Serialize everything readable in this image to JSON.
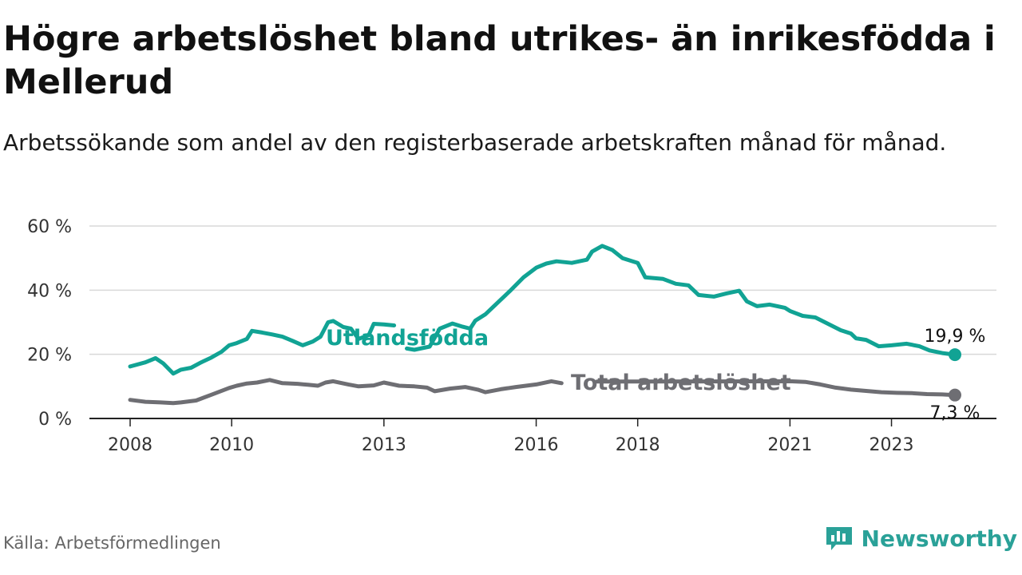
{
  "title": "Högre arbetslöshet bland utrikes- än inrikesfödda i Mellerud",
  "subtitle": "Arbetssökande som andel av den registerbaserade arbetskraften månad för månad.",
  "source": "Källa: Arbetsförmedlingen",
  "brand": "Newsworthy",
  "colors": {
    "foreign": "#11a394",
    "total": "#6e6e73",
    "grid": "#d9d9d9",
    "brand": "#2aa198"
  },
  "chart_data": {
    "type": "line",
    "title": "Högre arbetslöshet bland utrikes- än inrikesfödda i Mellerud",
    "ylim": [
      0,
      60
    ],
    "xlim": [
      2008.0,
      2024.3
    ],
    "y_ticks": [
      0,
      20,
      40,
      60
    ],
    "y_tick_labels": [
      "0 %",
      "20 %",
      "40 %",
      "60 %"
    ],
    "x_ticks": [
      2008,
      2010,
      2013,
      2016,
      2018,
      2021,
      2023
    ],
    "x_tick_labels": [
      "2008",
      "2010",
      "2013",
      "2016",
      "2018",
      "2021",
      "2023"
    ],
    "grid": true,
    "series": [
      {
        "name": "Utlandsfödda",
        "label": "Utlandsfödda",
        "end_label": "19,9 %",
        "points": [
          [
            2008.0,
            16.2
          ],
          [
            2008.3,
            17.5
          ],
          [
            2008.5,
            18.8
          ],
          [
            2008.65,
            17.2
          ],
          [
            2008.85,
            14.0
          ],
          [
            2009.0,
            15.2
          ],
          [
            2009.2,
            15.8
          ],
          [
            2009.4,
            17.5
          ],
          [
            2009.6,
            19.0
          ],
          [
            2009.8,
            20.8
          ],
          [
            2009.95,
            22.8
          ],
          [
            2010.1,
            23.5
          ],
          [
            2010.3,
            24.8
          ],
          [
            2010.4,
            27.3
          ],
          [
            2010.6,
            26.8
          ],
          [
            2010.8,
            26.2
          ],
          [
            2011.0,
            25.5
          ],
          [
            2011.2,
            24.2
          ],
          [
            2011.4,
            22.8
          ],
          [
            2011.6,
            24.0
          ],
          [
            2011.75,
            25.5
          ],
          [
            2011.9,
            30.0
          ],
          [
            2012.0,
            30.4
          ],
          [
            2012.2,
            28.5
          ],
          [
            2012.35,
            28.0
          ],
          [
            2012.5,
            24.8
          ],
          [
            2012.7,
            26.0
          ],
          [
            2012.8,
            29.5
          ],
          [
            2013.0,
            29.3
          ],
          [
            2013.2,
            29.0
          ]
        ],
        "points_b": [
          [
            2013.45,
            21.8
          ],
          [
            2013.6,
            21.4
          ],
          [
            2013.9,
            22.4
          ],
          [
            2014.1,
            28.0
          ],
          [
            2014.35,
            29.6
          ],
          [
            2014.55,
            28.6
          ],
          [
            2014.7,
            28.0
          ],
          [
            2014.8,
            30.5
          ],
          [
            2015.0,
            32.5
          ],
          [
            2015.2,
            35.5
          ],
          [
            2015.5,
            40.0
          ],
          [
            2015.75,
            44.0
          ],
          [
            2016.0,
            47.0
          ],
          [
            2016.2,
            48.3
          ],
          [
            2016.4,
            49.0
          ],
          [
            2016.7,
            48.5
          ],
          [
            2017.0,
            49.5
          ],
          [
            2017.1,
            52.0
          ],
          [
            2017.3,
            53.8
          ],
          [
            2017.5,
            52.5
          ],
          [
            2017.7,
            50.0
          ],
          [
            2018.0,
            48.5
          ],
          [
            2018.15,
            44.0
          ],
          [
            2018.3,
            43.8
          ],
          [
            2018.5,
            43.5
          ],
          [
            2018.75,
            42.0
          ],
          [
            2019.0,
            41.5
          ],
          [
            2019.2,
            38.5
          ],
          [
            2019.5,
            38.0
          ],
          [
            2019.75,
            39.0
          ],
          [
            2020.0,
            39.8
          ],
          [
            2020.15,
            36.5
          ],
          [
            2020.35,
            35.0
          ],
          [
            2020.6,
            35.5
          ],
          [
            2020.9,
            34.5
          ],
          [
            2021.0,
            33.5
          ],
          [
            2021.25,
            32.0
          ],
          [
            2021.5,
            31.5
          ],
          [
            2021.75,
            29.5
          ],
          [
            2022.0,
            27.5
          ],
          [
            2022.2,
            26.5
          ],
          [
            2022.3,
            25.0
          ],
          [
            2022.5,
            24.5
          ],
          [
            2022.75,
            22.5
          ],
          [
            2023.0,
            22.8
          ],
          [
            2023.3,
            23.3
          ],
          [
            2023.55,
            22.5
          ],
          [
            2023.75,
            21.2
          ],
          [
            2024.0,
            20.4
          ],
          [
            2024.25,
            19.9
          ]
        ]
      },
      {
        "name": "Total arbetslöshet",
        "label": "Total arbetslöshet",
        "end_label": "7,3 %",
        "points": [
          [
            2008.0,
            5.8
          ],
          [
            2008.3,
            5.2
          ],
          [
            2008.6,
            5.0
          ],
          [
            2008.85,
            4.8
          ],
          [
            2009.0,
            5.0
          ],
          [
            2009.3,
            5.6
          ],
          [
            2009.6,
            7.4
          ],
          [
            2009.95,
            9.5
          ],
          [
            2010.1,
            10.2
          ],
          [
            2010.3,
            10.9
          ],
          [
            2010.5,
            11.2
          ],
          [
            2010.75,
            12.0
          ],
          [
            2011.0,
            11.0
          ],
          [
            2011.3,
            10.8
          ],
          [
            2011.5,
            10.5
          ],
          [
            2011.7,
            10.2
          ],
          [
            2011.85,
            11.2
          ],
          [
            2012.0,
            11.6
          ],
          [
            2012.3,
            10.6
          ],
          [
            2012.5,
            10.0
          ],
          [
            2012.8,
            10.3
          ],
          [
            2013.0,
            11.2
          ],
          [
            2013.3,
            10.2
          ],
          [
            2013.6,
            10.0
          ],
          [
            2013.85,
            9.6
          ],
          [
            2014.0,
            8.5
          ],
          [
            2014.3,
            9.3
          ],
          [
            2014.6,
            9.8
          ],
          [
            2014.85,
            9.0
          ],
          [
            2015.0,
            8.2
          ],
          [
            2015.3,
            9.1
          ],
          [
            2015.6,
            9.8
          ],
          [
            2016.0,
            10.6
          ],
          [
            2016.3,
            11.6
          ],
          [
            2016.5,
            11.0
          ]
        ],
        "points_b": [
          [
            2017.2,
            11.5
          ],
          [
            2021.0,
            11.6
          ],
          [
            2021.3,
            11.4
          ],
          [
            2021.6,
            10.6
          ],
          [
            2021.9,
            9.6
          ],
          [
            2022.2,
            9.0
          ],
          [
            2022.5,
            8.6
          ],
          [
            2022.8,
            8.2
          ],
          [
            2023.1,
            8.0
          ],
          [
            2023.4,
            7.9
          ],
          [
            2023.7,
            7.6
          ],
          [
            2024.0,
            7.5
          ],
          [
            2024.25,
            7.3
          ]
        ]
      }
    ]
  }
}
